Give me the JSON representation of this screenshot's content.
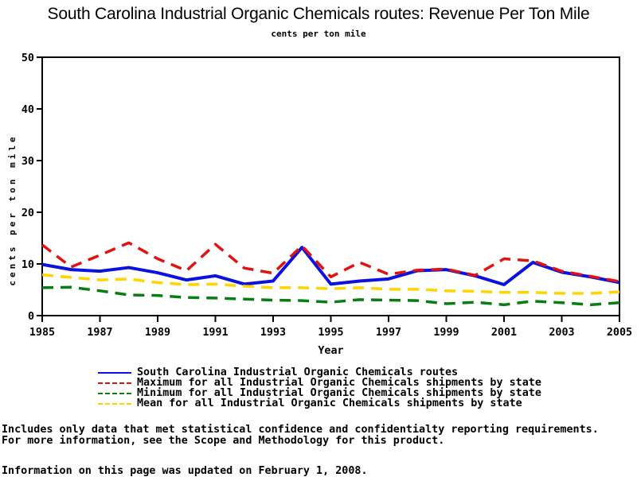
{
  "chart_data": {
    "type": "line",
    "title": "South Carolina Industrial Organic Chemicals routes: Revenue Per Ton Mile",
    "subtitle": "cents per ton mile",
    "xlabel": "Year",
    "ylabel": "cents per ton mile",
    "xlim": [
      1985,
      2005
    ],
    "ylim": [
      0,
      50
    ],
    "xticks": [
      1985,
      1987,
      1989,
      1991,
      1993,
      1995,
      1997,
      1999,
      2001,
      2003,
      2005
    ],
    "yticks": [
      0,
      10,
      20,
      30,
      40,
      50
    ],
    "grid": false,
    "legend_position": "bottom",
    "x": [
      1985,
      1986,
      1987,
      1988,
      1989,
      1990,
      1991,
      1992,
      1993,
      1994,
      1995,
      1996,
      1997,
      1998,
      1999,
      2000,
      2001,
      2002,
      2003,
      2004,
      2005
    ],
    "series": [
      {
        "name": "South Carolina Industrial Organic Chemicals routes",
        "color": "#0b12e0",
        "style": "solid",
        "values": [
          9.9,
          8.9,
          8.6,
          9.3,
          8.3,
          6.9,
          7.7,
          6.1,
          6.7,
          13.2,
          6.1,
          6.7,
          7.1,
          8.7,
          8.9,
          7.7,
          6.0,
          10.3,
          8.4,
          7.5,
          6.4
        ]
      },
      {
        "name": "Maximum for all Industrial Organic Chemicals shipments by state",
        "color": "#e01212",
        "style": "dashed",
        "values": [
          13.7,
          9.4,
          11.7,
          14.1,
          11.0,
          8.7,
          13.8,
          9.2,
          8.2,
          13.5,
          7.5,
          10.3,
          8.0,
          8.8,
          9.0,
          7.8,
          11.0,
          10.6,
          8.6,
          7.6,
          6.6
        ]
      },
      {
        "name": "Minimum for all Industrial Organic Chemicals shipments by state",
        "color": "#077d14",
        "style": "dashed",
        "values": [
          5.4,
          5.5,
          4.8,
          4.0,
          3.9,
          3.5,
          3.4,
          3.2,
          3.0,
          2.9,
          2.6,
          3.1,
          3.0,
          2.9,
          2.3,
          2.6,
          2.1,
          2.8,
          2.5,
          2.1,
          2.5
        ]
      },
      {
        "name": "Mean for all Industrial Organic Chemicals shipments by state",
        "color": "#ffd400",
        "style": "dashed",
        "values": [
          7.9,
          7.4,
          6.9,
          7.1,
          6.4,
          6.0,
          6.1,
          5.7,
          5.4,
          5.4,
          5.2,
          5.4,
          5.1,
          5.1,
          4.8,
          4.7,
          4.5,
          4.5,
          4.3,
          4.3,
          4.6
        ]
      }
    ]
  },
  "footnotes": [
    "Includes only data that met statistical confidence and confidentialty reporting requirements.",
    "For more information, see the Scope and Methodology for this product."
  ],
  "update_note": "Information on this page was updated on February 1, 2008."
}
